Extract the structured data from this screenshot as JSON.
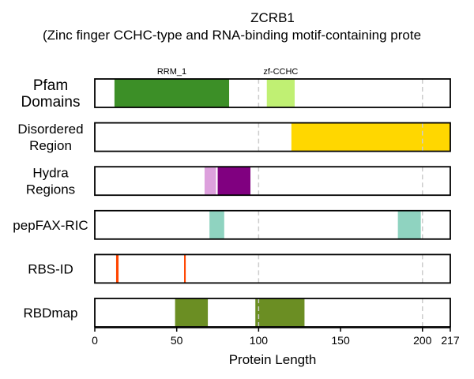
{
  "chart_data": {
    "type": "track",
    "title": "ZCRB1",
    "subtitle": "(Zinc finger CCHC-type and RNA-binding motif-containing prote",
    "xlabel": "Protein Length",
    "xlim": [
      0,
      217
    ],
    "xticks": [
      0,
      50,
      100,
      150,
      200,
      217
    ],
    "reference_lines": [
      100,
      200
    ],
    "grid": false,
    "tracks": [
      {
        "label": [
          "Pfam",
          "Domains"
        ],
        "segments": [
          {
            "start": 12,
            "end": 82,
            "color": "#3c8f27",
            "name": "RRM_1"
          },
          {
            "start": 105,
            "end": 122,
            "color": "#c0f073",
            "name": "zf-CCHC"
          }
        ]
      },
      {
        "label": [
          "Disordered",
          "Region"
        ],
        "segments": [
          {
            "start": 120,
            "end": 217,
            "color": "#ffd700"
          }
        ]
      },
      {
        "label": [
          "Hydra",
          "Regions"
        ],
        "segments": [
          {
            "start": 67,
            "end": 74,
            "color": "#dda0dd"
          },
          {
            "start": 75,
            "end": 95,
            "color": "#800080"
          }
        ]
      },
      {
        "label": [
          "pepFAX-RIC"
        ],
        "segments": [
          {
            "start": 70,
            "end": 79,
            "color": "#8fd3c0"
          },
          {
            "start": 185,
            "end": 199,
            "color": "#8fd3c0"
          }
        ]
      },
      {
        "label": [
          "RBS-ID"
        ],
        "segments": [
          {
            "start": 13,
            "end": 14.5,
            "color": "#ff4500"
          },
          {
            "start": 54.5,
            "end": 55.5,
            "color": "#ff4500"
          }
        ]
      },
      {
        "label": [
          "RBDmap"
        ],
        "segments": [
          {
            "start": 49,
            "end": 69,
            "color": "#6b8e23"
          },
          {
            "start": 98,
            "end": 128,
            "color": "#6b8e23"
          }
        ]
      }
    ]
  }
}
